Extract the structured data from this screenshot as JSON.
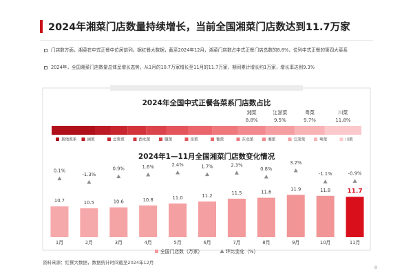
{
  "header": {
    "title": "2024年湘菜门店数量持续增长，当前全国湘菜门店数达到11.7万家"
  },
  "bullets": [
    "门店数方面，湘菜在中式正餐中位居前列。据红餐大数据，截至2024年12月，湘菜门店数占中式正餐门店总数的8.8%，位列中式正餐的第四大菜系",
    "2024年，全国湘菜门店数量总体呈增长态势，从1月的10.7万家增长至11月的11.7万家，期间累计增长约1万家，增长率达到9.3%"
  ],
  "source": "资料来源：红餐大数据，数据统计时间截至2024年12月",
  "page_number": "8",
  "chart_data": [
    {
      "type": "stacked-bar",
      "title": "2024年全国中式正餐各菜系门店数占比",
      "xlim": [
        0,
        100
      ],
      "series": [
        {
          "name": "其他菜系",
          "color": "#b0101a",
          "values": [
            14
          ]
        },
        {
          "name": "闽菜",
          "color": "#bc1a24",
          "values": [
            5
          ]
        },
        {
          "name": "云贵菜",
          "color": "#c8262f",
          "values": [
            5.5
          ]
        },
        {
          "name": "西北菜",
          "color": "#d3343c",
          "values": [
            6
          ]
        },
        {
          "name": "徽菜",
          "color": "#dc444b",
          "values": [
            6.5
          ]
        },
        {
          "name": "京菜",
          "color": "#e4555b",
          "values": [
            7
          ]
        },
        {
          "name": "鲁菜",
          "color": "#ea666c",
          "values": [
            7.8
          ]
        },
        {
          "name": "东北菜",
          "color": "#ef787d",
          "values": [
            8.4
          ]
        },
        {
          "name": "湘菜",
          "color": "#f2898e",
          "values": [
            8.8
          ],
          "value_labels": [
            "8.8%"
          ]
        },
        {
          "name": "江浙菜",
          "color": "#f59ea2",
          "values": [
            9.5
          ],
          "value_labels": [
            "9.5%"
          ]
        },
        {
          "name": "粤菜",
          "color": "#f8b3b6",
          "values": [
            9.7
          ],
          "value_labels": [
            "9.7%"
          ]
        },
        {
          "name": "川菜",
          "color": "#fbc9cb",
          "values": [
            11.8
          ],
          "value_labels": [
            "11.8%"
          ]
        }
      ]
    },
    {
      "type": "bar-line",
      "title": "2024年1—11月全国湘菜门店数变化情况",
      "categories": [
        "1月",
        "2月",
        "3月",
        "4月",
        "5月",
        "6月",
        "7月",
        "8月",
        "9月",
        "10月",
        "11月"
      ],
      "ylim": [
        7.5,
        12.5
      ],
      "y2lim": [
        -4,
        4
      ],
      "series": [
        {
          "name": "全国门店数（万家）",
          "type": "bar",
          "color": "#f39a9c",
          "colors": [
            "#f6a9ab",
            "#f6a9ab",
            "#f5a4a6",
            "#f5a4a6",
            "#f49fa1",
            "#f49fa1",
            "#f39a9c",
            "#f39a9c",
            "#f29597",
            "#f29597",
            "#d9101c"
          ],
          "values": [
            10.7,
            10.5,
            10.6,
            10.8,
            11.0,
            11.2,
            11.5,
            11.6,
            11.9,
            11.8,
            11.7
          ],
          "value_labels": [
            "10.7",
            "10.5",
            "10.6",
            "10.8",
            "11.0",
            "11.2",
            "11.5",
            "11.6",
            "11.9",
            "11.8",
            "11.7"
          ]
        },
        {
          "name": "环比变化（%）",
          "type": "line",
          "axis": "y2",
          "color": "#8c8c8c",
          "marker": "triangle",
          "values": [
            0.1,
            -1.3,
            0.9,
            1.6,
            2.4,
            1.7,
            2.3,
            0.8,
            3.2,
            -1.1,
            -0.9
          ],
          "value_labels": [
            "0.1%",
            "-1.3%",
            "0.9%",
            "1.6%",
            "2.4%",
            "1.7%",
            "2.3%",
            "0.8%",
            "3.2%",
            "-1.1%",
            "-0.9%"
          ]
        }
      ]
    }
  ]
}
